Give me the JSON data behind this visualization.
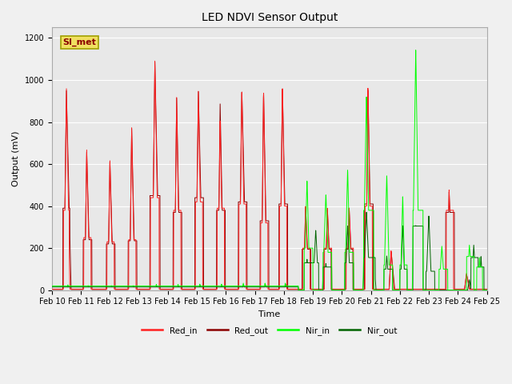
{
  "title": "LED NDVI Sensor Output",
  "xlabel": "Time",
  "ylabel": "Output (mV)",
  "ylim": [
    0,
    1250
  ],
  "yticks": [
    0,
    200,
    400,
    600,
    800,
    1000,
    1200
  ],
  "plot_bg_color": "#e8e8e8",
  "fig_bg_color": "#f0f0f0",
  "annotation_text": "SI_met",
  "annotation_bg": "#f0e060",
  "annotation_border": "#a0a000",
  "line_colors": {
    "Red_in": "#ff2020",
    "Red_out": "#8b0000",
    "Nir_in": "#00ff00",
    "Nir_out": "#006400"
  },
  "x_labels": [
    "Feb 10",
    "Feb 11",
    "Feb 12",
    "Feb 13",
    "Feb 14",
    "Feb 15",
    "Feb 16",
    "Feb 17",
    "Feb 18",
    "Feb 19",
    "Feb 20",
    "Feb 21",
    "Feb 22",
    "Feb 23",
    "Feb 24",
    "Feb 25"
  ],
  "legend_entries": [
    "Red_in",
    "Red_out",
    "Nir_in",
    "Nir_out"
  ],
  "grid_color": "#ffffff"
}
